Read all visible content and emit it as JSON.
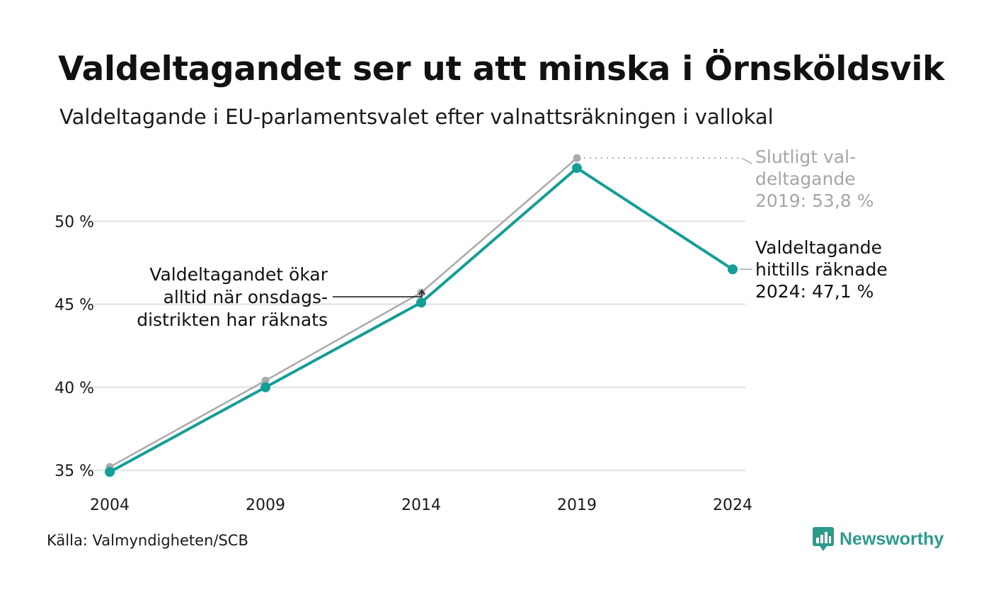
{
  "title": "Valdeltagandet ser ut att minska i Örnsköldsvik",
  "subtitle": "Valdeltagande i EU-parlamentsvalet efter valnattsräkningen i vallokal",
  "source": "Källa: Valmyndigheten/SCB",
  "brand": "Newsworthy",
  "chart_data": {
    "type": "line",
    "x": [
      "2004",
      "2009",
      "2014",
      "2019",
      "2024"
    ],
    "ylim": [
      34.7,
      55.0
    ],
    "yticks": [
      35,
      40,
      45,
      50
    ],
    "ytick_labels": [
      "35 %",
      "40 %",
      "45 %",
      "50 %"
    ],
    "grid": true,
    "series": [
      {
        "key": "final",
        "color": "#aaaaaa",
        "values": [
          35.2,
          40.4,
          45.7,
          53.8,
          null
        ]
      },
      {
        "key": "valnatt",
        "color": "#139e96",
        "values": [
          34.9,
          40.0,
          45.1,
          53.2,
          47.1
        ]
      }
    ],
    "annotations": {
      "final_2019": [
        "Slutligt val-",
        "deltagande",
        "2019: 53,8 %"
      ],
      "current_2024": [
        "Valdeltagande",
        "hittills räknade",
        "2024: 47,1 %"
      ],
      "onsdag": [
        "Valdeltagandet ökar",
        "alltid när onsdags-",
        "distrikten har räknats"
      ]
    }
  }
}
